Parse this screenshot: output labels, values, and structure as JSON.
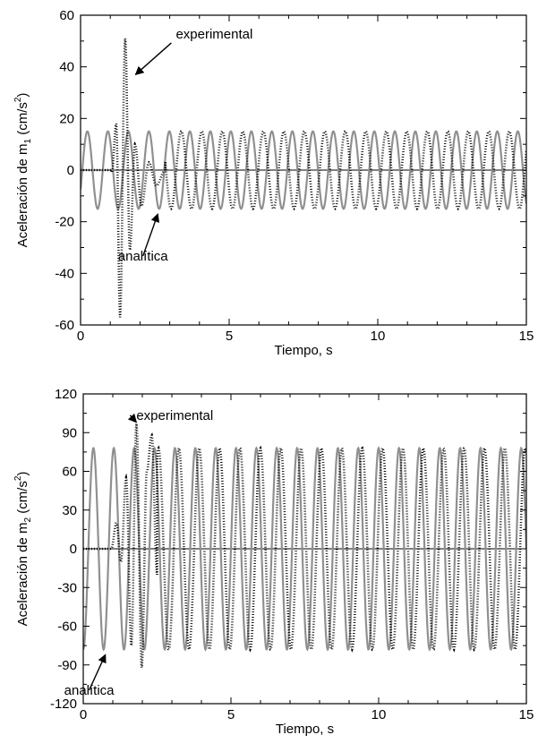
{
  "chart_data": [
    {
      "type": "line",
      "title": "",
      "xlabel": "Tiempo, s",
      "ylabel": {
        "main": "Aceleración de m",
        "sub": "1",
        "unit_pre": " (cm/s",
        "sup": "2",
        "unit_post": ")"
      },
      "xlim": [
        0,
        15
      ],
      "ylim": [
        -60,
        60
      ],
      "xticks": [
        0,
        5,
        10,
        15
      ],
      "yticks": [
        -60,
        -40,
        -20,
        0,
        20,
        40,
        60
      ],
      "grid": false,
      "legend": "none",
      "zero_line": true,
      "annotations": [
        {
          "text": "experimental",
          "x": 4.5,
          "y": 51,
          "arrow_to": [
            1.85,
            37
          ]
        },
        {
          "text": "analítica",
          "x": 2.1,
          "y": -35,
          "arrow_to": [
            2.6,
            -17
          ]
        }
      ],
      "series": [
        {
          "style": "solid",
          "color": "#909090",
          "kind": "sine",
          "amplitude": 15,
          "frequency_hz": 1.45,
          "phase_deg": -30,
          "t_range": [
            0,
            15
          ]
        },
        {
          "style": "dotted",
          "color": "#000000",
          "kind": "segments",
          "segments": [
            {
              "type": "flat",
              "t0": 0,
              "t1": 1.05,
              "y": 0
            },
            {
              "type": "peaks",
              "times": [
                1.05,
                1.2,
                1.33,
                1.5,
                1.66,
                1.83,
                2.05,
                2.3,
                2.55,
                2.85
              ],
              "values": [
                -1,
                18,
                -57,
                51,
                -31,
                10,
                -14,
                3,
                -6,
                0
              ]
            },
            {
              "type": "sine",
              "t0": 2.85,
              "t1": 15,
              "amplitude": 15,
              "frequency_hz": 1.45,
              "phase_deg": 120
            }
          ]
        }
      ]
    },
    {
      "type": "line",
      "title": "",
      "xlabel": "Tiempo, s",
      "ylabel": {
        "main": "Aceleración de m",
        "sub": "2",
        "unit_pre": " (cm/s",
        "sup": "2",
        "unit_post": ")"
      },
      "xlim": [
        0,
        15
      ],
      "ylim": [
        -120,
        120
      ],
      "xticks": [
        0,
        5,
        10,
        15
      ],
      "yticks": [
        -120,
        -90,
        -60,
        -30,
        0,
        30,
        60,
        90,
        120
      ],
      "grid": false,
      "legend": "none",
      "zero_line": true,
      "annotations": [
        {
          "text": "experimental",
          "x": 3.1,
          "y": 100,
          "arrow_to": [
            1.8,
            98
          ]
        },
        {
          "text": "analítica",
          "x": 0.2,
          "y": -113,
          "arrow_to": [
            0.75,
            -82
          ]
        }
      ],
      "series": [
        {
          "style": "solid",
          "color": "#909090",
          "kind": "sine",
          "amplitude": 78,
          "frequency_hz": 1.45,
          "phase_deg": 270,
          "t_range": [
            0,
            15
          ]
        },
        {
          "style": "dotted",
          "color": "#000000",
          "kind": "segments",
          "segments": [
            {
              "type": "flat",
              "t0": 0,
              "t1": 0.95,
              "y": 0
            },
            {
              "type": "peaks",
              "times": [
                0.95,
                1.12,
                1.28,
                1.45,
                1.63,
                1.8,
                1.98,
                2.15,
                2.32,
                2.5
              ],
              "values": [
                0,
                20,
                -10,
                55,
                -75,
                97,
                -92,
                60,
                88,
                -20
              ]
            },
            {
              "type": "sine",
              "t0": 2.5,
              "t1": 15,
              "amplitude": 78,
              "frequency_hz": 1.45,
              "phase_deg": 200
            }
          ]
        }
      ]
    }
  ]
}
